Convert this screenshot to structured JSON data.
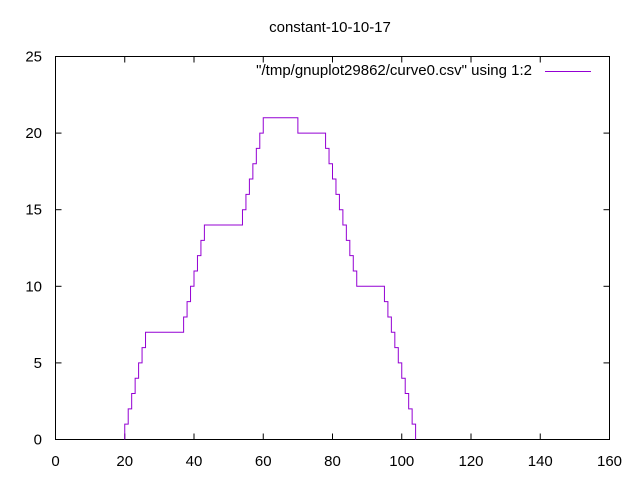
{
  "chart_data": {
    "type": "line",
    "title": "constant-10-10-17",
    "xlabel": "",
    "ylabel": "",
    "xlim": [
      0,
      160
    ],
    "ylim": [
      0,
      25
    ],
    "xticks": [
      0,
      20,
      40,
      60,
      80,
      100,
      120,
      140,
      160
    ],
    "yticks": [
      0,
      5,
      10,
      15,
      20,
      25
    ],
    "grid": false,
    "legend_position": "top-right",
    "step": "post",
    "series": [
      {
        "name": "\"/tmp/gnuplot29862/curve0.csv\" using 1:2",
        "color": "#9400d3",
        "x": [
          20,
          21,
          22,
          23,
          24,
          25,
          26,
          37,
          38,
          39,
          40,
          41,
          42,
          43,
          54,
          55,
          56,
          57,
          58,
          59,
          60,
          70,
          78,
          79,
          80,
          81,
          82,
          83,
          84,
          85,
          86,
          87,
          95,
          96,
          97,
          98,
          99,
          100,
          101,
          102,
          103,
          104
        ],
        "y": [
          1,
          2,
          3,
          4,
          5,
          6,
          7,
          8,
          9,
          10,
          11,
          12,
          13,
          14,
          15,
          16,
          17,
          18,
          19,
          20,
          21,
          20,
          19,
          18,
          17,
          16,
          15,
          14,
          13,
          12,
          11,
          10,
          9,
          8,
          7,
          6,
          5,
          4,
          3,
          2,
          1,
          0
        ]
      }
    ]
  }
}
